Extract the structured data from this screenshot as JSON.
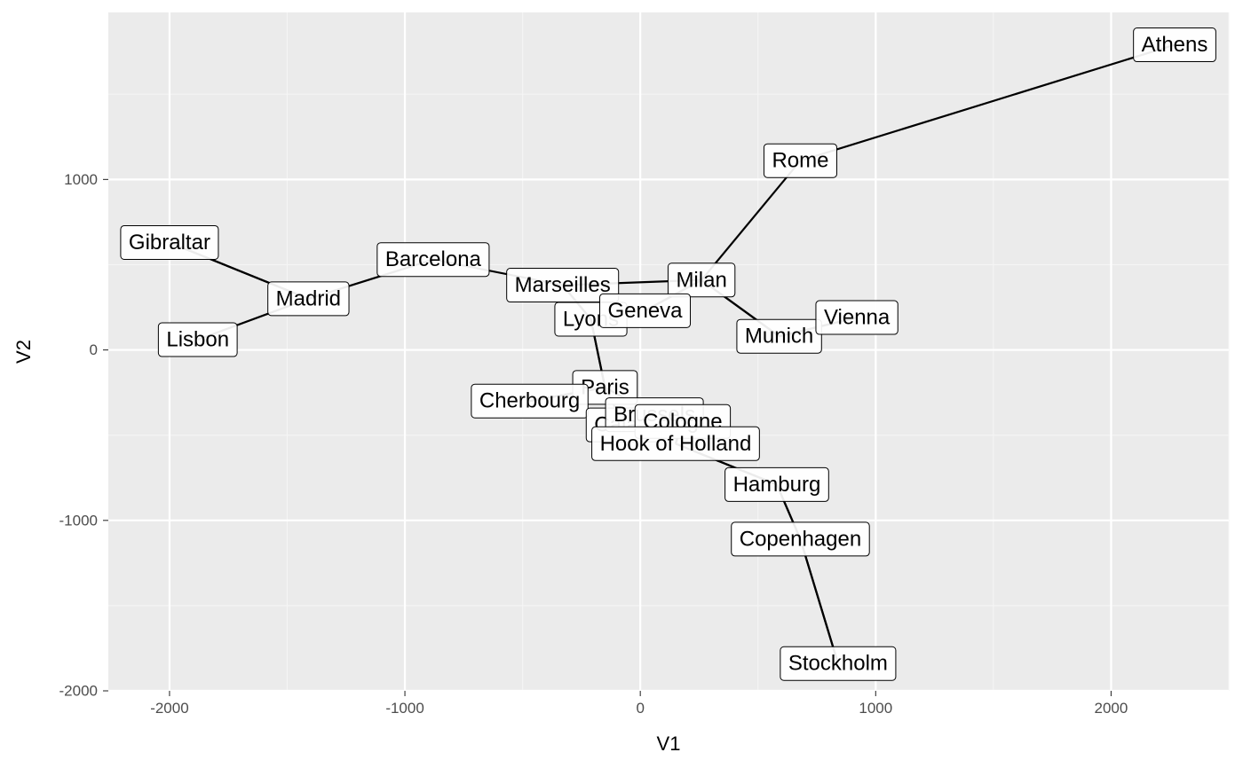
{
  "colors": {
    "panel_background": "#ebebeb",
    "grid_major": "#ffffff",
    "grid_minor": "#f5f5f5",
    "path_line": "#000000",
    "label_fill": "#ffffff",
    "label_border": "#000000"
  },
  "chart_data": {
    "type": "scatter",
    "xlabel": "V1",
    "ylabel": "V2",
    "xlim": [
      -2260,
      2500
    ],
    "ylim": [
      -2000,
      1980
    ],
    "x_ticks": [
      -2000,
      -1000,
      0,
      1000,
      2000
    ],
    "x_tick_labels": [
      "-2000",
      "-1000",
      "0",
      "1000",
      "2000"
    ],
    "y_ticks": [
      -2000,
      -1000,
      0,
      1000
    ],
    "y_tick_labels": [
      "-2000",
      "-1000",
      "0",
      "1000"
    ],
    "grid": true,
    "connect_points": true,
    "points": [
      {
        "label": "Lisbon",
        "x": -1880,
        "y": 60
      },
      {
        "label": "Madrid",
        "x": -1410,
        "y": 300
      },
      {
        "label": "Gibraltar",
        "x": -2000,
        "y": 630
      },
      {
        "label": "Barcelona",
        "x": -880,
        "y": 530
      },
      {
        "label": "Marseilles",
        "x": -330,
        "y": 380
      },
      {
        "label": "Lyons",
        "x": -210,
        "y": 180
      },
      {
        "label": "Paris",
        "x": -150,
        "y": -220
      },
      {
        "label": "Cherbourg",
        "x": -470,
        "y": -300
      },
      {
        "label": "Calais",
        "x": -70,
        "y": -440
      },
      {
        "label": "Brussels",
        "x": 60,
        "y": -380
      },
      {
        "label": "Cologne",
        "x": 180,
        "y": -420
      },
      {
        "label": "Hook of Holland",
        "x": 150,
        "y": -550
      },
      {
        "label": "Hamburg",
        "x": 580,
        "y": -790
      },
      {
        "label": "Copenhagen",
        "x": 680,
        "y": -1110
      },
      {
        "label": "Stockholm",
        "x": 840,
        "y": -1840
      },
      {
        "label": "Munich",
        "x": 590,
        "y": 80
      },
      {
        "label": "Vienna",
        "x": 920,
        "y": 190
      },
      {
        "label": "Milan",
        "x": 260,
        "y": 410
      },
      {
        "label": "Geneva",
        "x": 20,
        "y": 230
      },
      {
        "label": "Rome",
        "x": 680,
        "y": 1110
      },
      {
        "label": "Athens",
        "x": 2270,
        "y": 1790
      }
    ],
    "path_order": [
      "Lisbon",
      "Madrid",
      "Gibraltar",
      "Madrid",
      "Barcelona",
      "Marseilles",
      "Lyons",
      "Paris",
      "Cherbourg",
      "Paris",
      "Calais",
      "Brussels",
      "Cologne",
      "Hook of Holland",
      "Hamburg",
      "Copenhagen",
      "Stockholm",
      "Copenhagen",
      "Hamburg",
      "Hook of Holland",
      "Cologne",
      "Brussels",
      "Paris",
      "Lyons",
      "Marseilles",
      "Milan",
      "Munich",
      "Vienna",
      "Munich",
      "Milan",
      "Geneva",
      "Milan",
      "Rome",
      "Athens"
    ]
  }
}
